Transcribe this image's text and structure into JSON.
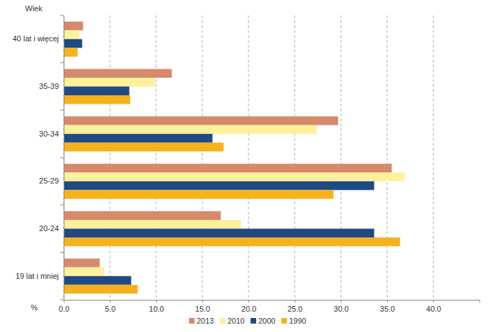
{
  "chart_data": {
    "type": "bar",
    "orientation": "horizontal",
    "x_label": "%",
    "y_label": "Wiek",
    "categories": [
      "40 lat i więcej",
      "35-39",
      "30-34",
      "25-29",
      "20-24",
      "19 lat i mniej"
    ],
    "series": [
      {
        "name": "2013",
        "color": "#d68a6c",
        "values": [
          2.1,
          11.7,
          29.7,
          35.5,
          17.0,
          3.9
        ]
      },
      {
        "name": "2010",
        "color": "#fff09c",
        "values": [
          1.7,
          9.9,
          27.4,
          36.9,
          19.2,
          4.4
        ]
      },
      {
        "name": "2000",
        "color": "#1f4a84",
        "values": [
          2.0,
          7.1,
          16.1,
          33.6,
          33.6,
          7.3
        ]
      },
      {
        "name": "1990",
        "color": "#f6b21c",
        "values": [
          1.5,
          7.2,
          17.3,
          29.2,
          36.4,
          8.0
        ]
      }
    ],
    "xlim": [
      0,
      45
    ],
    "xticks": [
      {
        "value": 0,
        "label": "0.0"
      },
      {
        "value": 5,
        "label": "5.0"
      },
      {
        "value": 10,
        "label": "10.0"
      },
      {
        "value": 15,
        "label": "15.0"
      },
      {
        "value": 20,
        "label": "20.0"
      },
      {
        "value": 25,
        "label": "25.0"
      },
      {
        "value": 30,
        "label": "30.0"
      },
      {
        "value": 35,
        "label": "35.0"
      },
      {
        "value": 40,
        "label": "40.0"
      }
    ],
    "grid": true,
    "legend": "bottom"
  }
}
